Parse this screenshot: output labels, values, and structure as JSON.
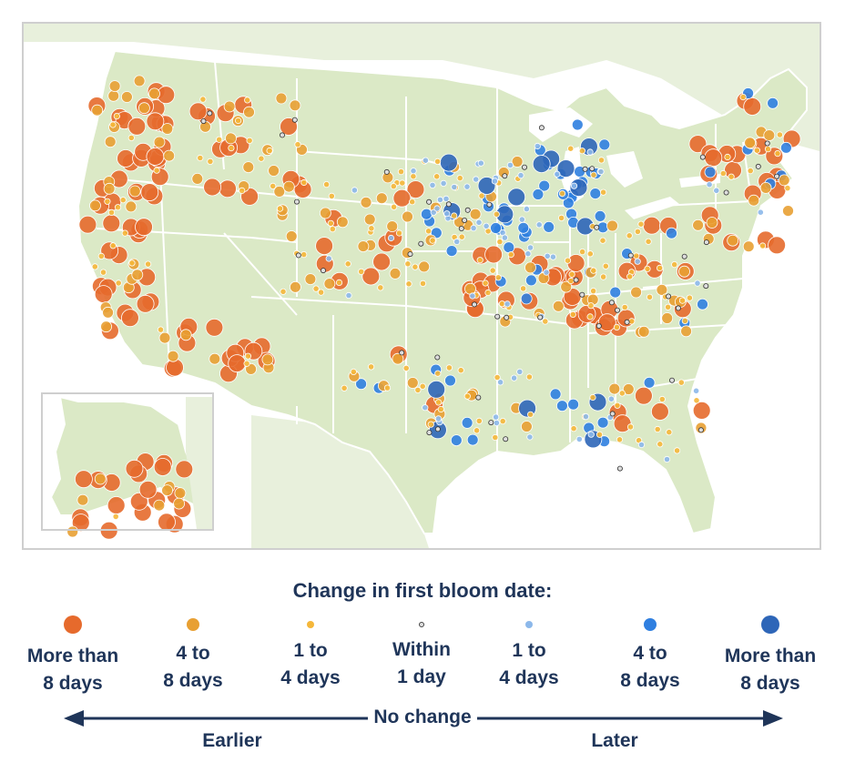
{
  "legend": {
    "title": "Change in first bloom date:",
    "items": [
      {
        "label": "More than\n8 days",
        "color": "#e66a2c",
        "size": "large",
        "direction": "earlier"
      },
      {
        "label": "4 to\n8 days",
        "color": "#e8a033",
        "size": "medium",
        "direction": "earlier"
      },
      {
        "label": "1 to\n4 days",
        "color": "#f5b73a",
        "size": "small",
        "direction": "earlier"
      },
      {
        "label": "Within\n1 day",
        "color": "#dddddd",
        "size": "tiny",
        "direction": "none"
      },
      {
        "label": "1 to\n4 days",
        "color": "#8cb8ea",
        "size": "small",
        "direction": "later"
      },
      {
        "label": "4 to\n8 days",
        "color": "#2f7fe0",
        "size": "medium",
        "direction": "later"
      },
      {
        "label": "More than\n8 days",
        "color": "#2e66b8",
        "size": "large",
        "direction": "later"
      }
    ]
  },
  "axis": {
    "center_label": "No change",
    "left_label": "Earlier",
    "right_label": "Later"
  },
  "colors": {
    "land": "#dbe9c6",
    "land_border": "#ffffff",
    "water": "#ffffff",
    "text": "#1f3559",
    "frame": "#cfcfcf"
  },
  "map": {
    "regions": [
      "contiguous-us",
      "alaska-inset"
    ]
  }
}
